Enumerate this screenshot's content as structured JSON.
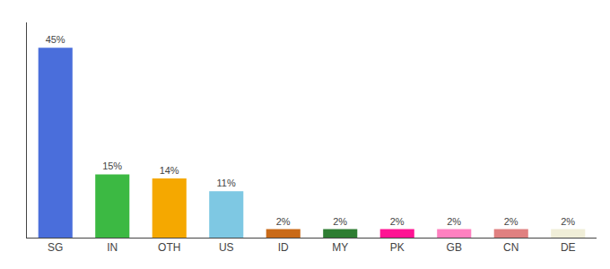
{
  "chart_data": {
    "type": "bar",
    "categories": [
      "SG",
      "IN",
      "OTH",
      "US",
      "ID",
      "MY",
      "PK",
      "GB",
      "CN",
      "DE"
    ],
    "values": [
      45,
      15,
      14,
      11,
      2,
      2,
      2,
      2,
      2,
      2
    ],
    "value_labels": [
      "45%",
      "15%",
      "14%",
      "11%",
      "2%",
      "2%",
      "2%",
      "2%",
      "2%",
      "2%"
    ],
    "colors": [
      "#4a6edb",
      "#3cb943",
      "#f5a800",
      "#7ec8e3",
      "#c96a18",
      "#2e7d32",
      "#ff1493",
      "#ff80c0",
      "#e08080",
      "#f0eed8"
    ],
    "ylim": [
      0,
      51
    ],
    "data_labels": true,
    "tick_labels": "x",
    "grid": false
  }
}
